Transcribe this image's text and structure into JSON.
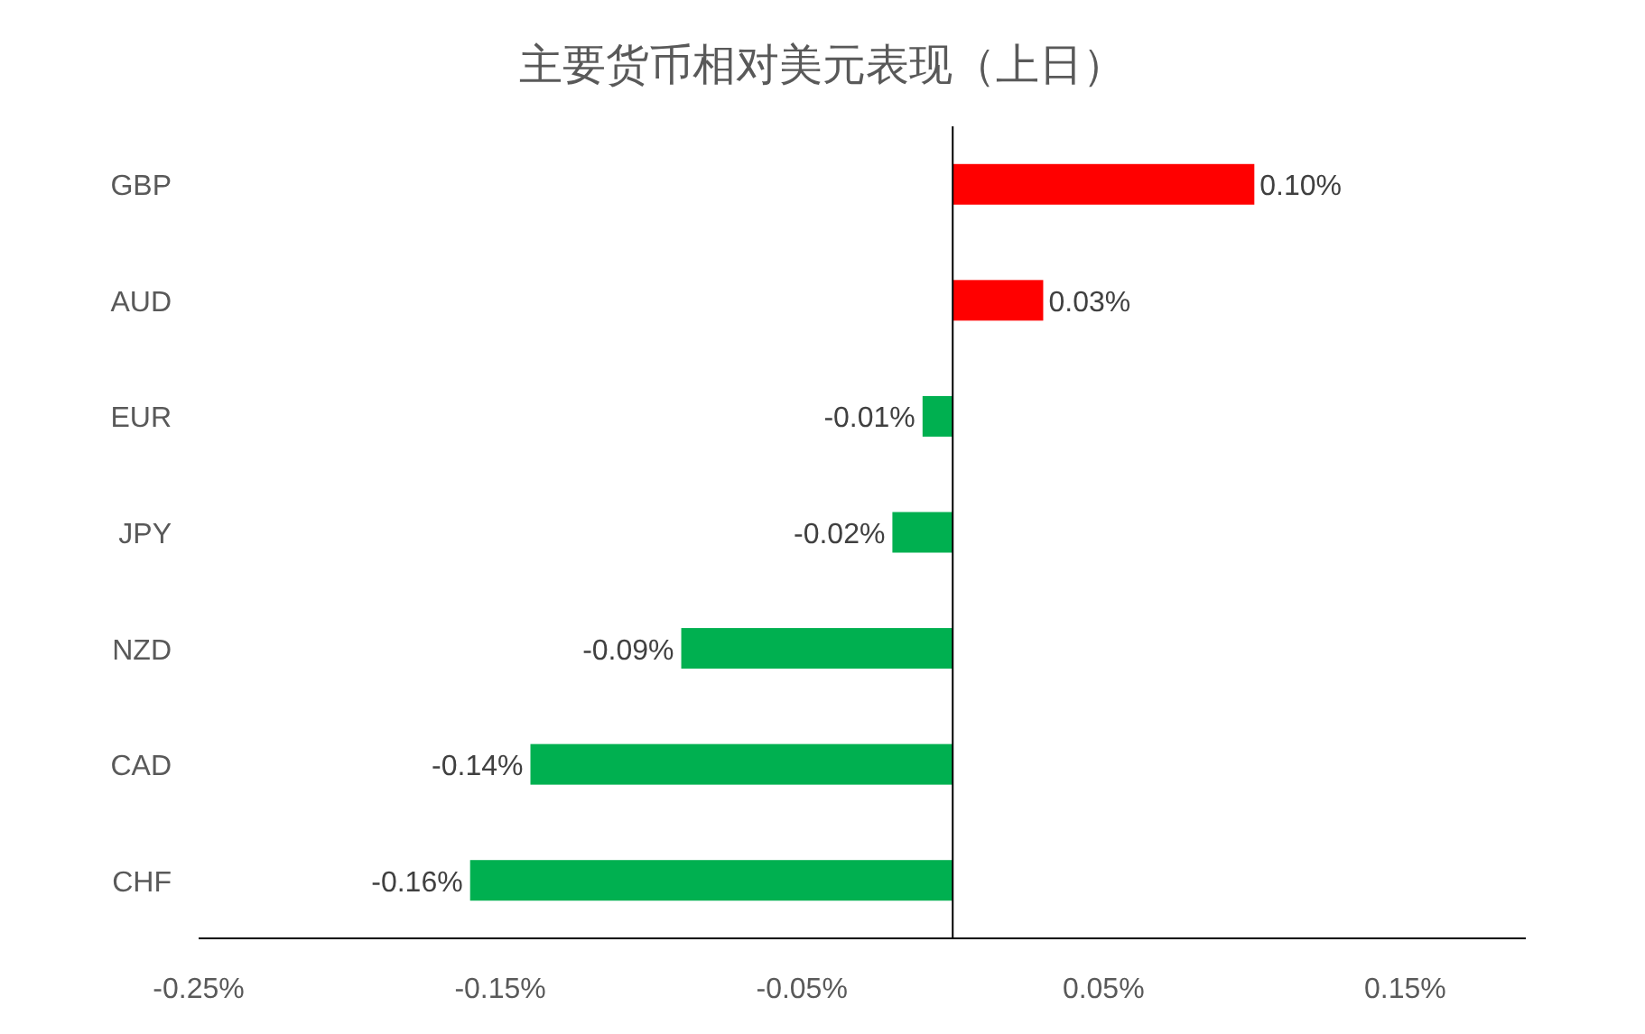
{
  "chart_data": {
    "type": "bar",
    "orientation": "horizontal",
    "title": "主要货币相对美元表现（上日）",
    "categories": [
      "GBP",
      "AUD",
      "EUR",
      "JPY",
      "NZD",
      "CAD",
      "CHF"
    ],
    "values": [
      0.1,
      0.03,
      -0.01,
      -0.02,
      -0.09,
      -0.14,
      -0.16
    ],
    "colors": [
      "#ff0000",
      "#ff0000",
      "#00b050",
      "#00b050",
      "#00b050",
      "#00b050",
      "#00b050"
    ],
    "value_labels": [
      "0.10%",
      "0.03%",
      "-0.01%",
      "-0.02%",
      "-0.09%",
      "-0.14%",
      "-0.16%"
    ],
    "xlim": [
      -0.25,
      0.19
    ],
    "xticks": [
      {
        "value": -0.25,
        "label": "-0.25%"
      },
      {
        "value": -0.15,
        "label": "-0.15%"
      },
      {
        "value": -0.05,
        "label": "-0.05%"
      },
      {
        "value": 0.05,
        "label": "0.05%"
      },
      {
        "value": 0.15,
        "label": "0.15%"
      }
    ]
  }
}
